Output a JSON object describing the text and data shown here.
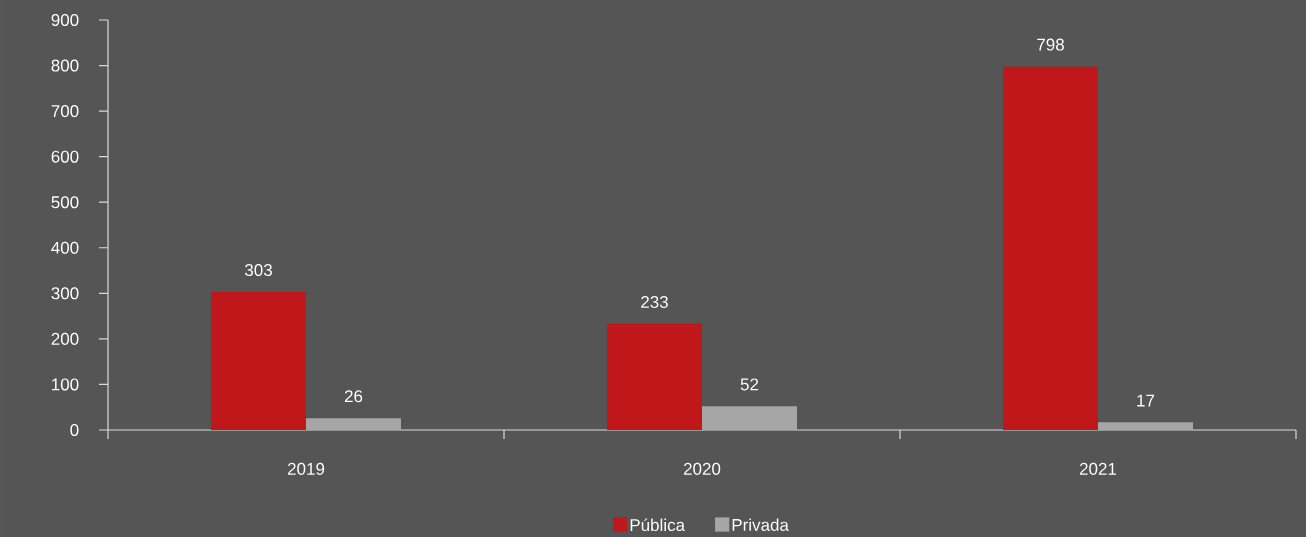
{
  "chart_data": {
    "type": "bar",
    "categories": [
      "2019",
      "2020",
      "2021"
    ],
    "series": [
      {
        "name": "Pública",
        "color": "#c0181a",
        "values": [
          303,
          233,
          798
        ]
      },
      {
        "name": "Privada",
        "color": "#a6a6a6",
        "values": [
          26,
          52,
          17
        ]
      }
    ],
    "ylim": [
      0,
      900
    ],
    "yticks": [
      0,
      100,
      200,
      300,
      400,
      500,
      600,
      700,
      800,
      900
    ],
    "data_labels": true,
    "legend": "bottom",
    "grid": false
  }
}
